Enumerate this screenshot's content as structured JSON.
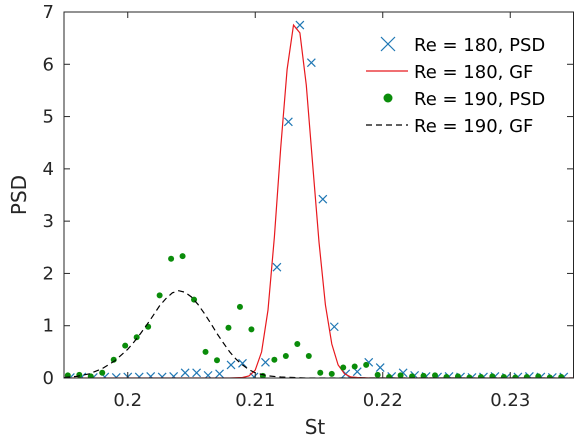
{
  "chart_data": {
    "type": "scatter",
    "xlabel": "St",
    "ylabel": "PSD",
    "xlim": [
      0.195,
      0.235
    ],
    "ylim": [
      0,
      7
    ],
    "xticks": [
      0.2,
      0.21,
      0.22,
      0.23
    ],
    "xtick_labels": [
      "0.2",
      "0.21",
      "0.22",
      "0.23"
    ],
    "yticks": [
      0,
      1,
      2,
      3,
      4,
      5,
      6,
      7
    ],
    "ytick_labels": [
      "0",
      "1",
      "2",
      "3",
      "4",
      "5",
      "6",
      "7"
    ],
    "grid": false,
    "legend_position": "top-right",
    "series": [
      {
        "name": "Re = 180, PSD",
        "kind": "marker-x",
        "color": "#1f77b4",
        "x": [
          0.1955,
          0.1964,
          0.1973,
          0.1982,
          0.1991,
          0.2,
          0.2009,
          0.2018,
          0.2027,
          0.2036,
          0.2045,
          0.2054,
          0.2063,
          0.2072,
          0.2081,
          0.209,
          0.2099,
          0.2108,
          0.2117,
          0.2126,
          0.2135,
          0.2144,
          0.2153,
          0.2162,
          0.2171,
          0.218,
          0.2189,
          0.2198,
          0.2207,
          0.2216,
          0.2225,
          0.2234,
          0.2243,
          0.2252,
          0.2261,
          0.227,
          0.2279,
          0.2288,
          0.2297,
          0.2306,
          0.2315,
          0.2324,
          0.2333,
          0.2342
        ],
        "y": [
          0.01,
          0.02,
          0.01,
          0.02,
          0.01,
          0.02,
          0.02,
          0.03,
          0.02,
          0.03,
          0.1,
          0.1,
          0.05,
          0.08,
          0.25,
          0.28,
          0.02,
          0.3,
          2.12,
          4.9,
          6.75,
          6.03,
          3.42,
          0.98,
          0.08,
          0.12,
          0.3,
          0.2,
          0.03,
          0.1,
          0.05,
          0.03,
          0.02,
          0.03,
          0.02,
          0.01,
          0.02,
          0.03,
          0.01,
          0.02,
          0.03,
          0.02,
          0.01,
          0.02
        ]
      },
      {
        "name": "Re = 180, GF",
        "kind": "line-solid",
        "color": "#e8191e",
        "x": [
          0.195,
          0.196,
          0.197,
          0.198,
          0.199,
          0.2,
          0.201,
          0.202,
          0.203,
          0.204,
          0.205,
          0.206,
          0.207,
          0.208,
          0.209,
          0.2095,
          0.21,
          0.2105,
          0.211,
          0.2115,
          0.212,
          0.2125,
          0.213,
          0.2135,
          0.214,
          0.2145,
          0.215,
          0.2155,
          0.216,
          0.2165,
          0.217,
          0.2175,
          0.218,
          0.219,
          0.22,
          0.221,
          0.222,
          0.223,
          0.224,
          0.225,
          0.226,
          0.227,
          0.228,
          0.229,
          0.23,
          0.231,
          0.232,
          0.233,
          0.234,
          0.235
        ],
        "y": [
          0,
          0,
          0,
          0,
          0,
          0,
          0,
          0,
          0,
          0,
          0,
          0,
          0,
          0,
          0.01,
          0.04,
          0.15,
          0.5,
          1.3,
          2.7,
          4.4,
          5.9,
          6.75,
          6.6,
          5.6,
          4.1,
          2.6,
          1.4,
          0.65,
          0.25,
          0.08,
          0.02,
          0.01,
          0,
          0,
          0,
          0,
          0,
          0,
          0,
          0,
          0,
          0,
          0,
          0,
          0,
          0,
          0,
          0,
          0
        ]
      },
      {
        "name": "Re = 190, PSD",
        "kind": "marker-dot",
        "color": "#0a8c0a",
        "x": [
          0.1953,
          0.1962,
          0.1971,
          0.198,
          0.1989,
          0.1998,
          0.2007,
          0.2016,
          0.2025,
          0.2034,
          0.2043,
          0.2052,
          0.2061,
          0.207,
          0.2079,
          0.2088,
          0.2097,
          0.2106,
          0.2115,
          0.2124,
          0.2133,
          0.2142,
          0.2151,
          0.216,
          0.2169,
          0.2178,
          0.2187,
          0.2196,
          0.2205,
          0.2214,
          0.2223,
          0.2232,
          0.2241,
          0.225,
          0.2259,
          0.2268,
          0.2277,
          0.2286,
          0.2295,
          0.2304,
          0.2313,
          0.2322,
          0.2331,
          0.234
        ],
        "y": [
          0.05,
          0.06,
          0.03,
          0.1,
          0.35,
          0.62,
          0.78,
          0.98,
          1.58,
          2.28,
          2.33,
          1.5,
          0.5,
          0.34,
          0.96,
          1.36,
          0.93,
          0.04,
          0.35,
          0.42,
          0.65,
          0.42,
          0.1,
          0.08,
          0.2,
          0.22,
          0.25,
          0.06,
          0.02,
          0.05,
          0.03,
          0.04,
          0.05,
          0.02,
          0.03,
          0.01,
          0.02,
          0.03,
          0.02,
          0.01,
          0.02,
          0.03,
          0.01,
          0.02
        ]
      },
      {
        "name": "Re = 190, GF",
        "kind": "line-dashed",
        "color": "#000000",
        "x": [
          0.195,
          0.196,
          0.197,
          0.198,
          0.199,
          0.2,
          0.2005,
          0.201,
          0.2015,
          0.202,
          0.2025,
          0.203,
          0.2035,
          0.204,
          0.2045,
          0.205,
          0.2055,
          0.206,
          0.2065,
          0.207,
          0.2075,
          0.208,
          0.2085,
          0.209,
          0.2095,
          0.21,
          0.211,
          0.212,
          0.213,
          0.214,
          0.215,
          0.216,
          0.217,
          0.218,
          0.219,
          0.22,
          0.221,
          0.222,
          0.223,
          0.224,
          0.225,
          0.226,
          0.227,
          0.228,
          0.229,
          0.23,
          0.231,
          0.232,
          0.233,
          0.234,
          0.235
        ],
        "y": [
          0.01,
          0.03,
          0.08,
          0.18,
          0.33,
          0.55,
          0.69,
          0.85,
          1.02,
          1.2,
          1.38,
          1.52,
          1.63,
          1.67,
          1.64,
          1.55,
          1.41,
          1.24,
          1.05,
          0.85,
          0.67,
          0.5,
          0.36,
          0.25,
          0.16,
          0.1,
          0.04,
          0.02,
          0.01,
          0,
          0,
          0,
          0,
          0,
          0,
          0,
          0,
          0,
          0,
          0,
          0,
          0,
          0,
          0,
          0,
          0,
          0,
          0,
          0,
          0,
          0
        ]
      }
    ]
  }
}
